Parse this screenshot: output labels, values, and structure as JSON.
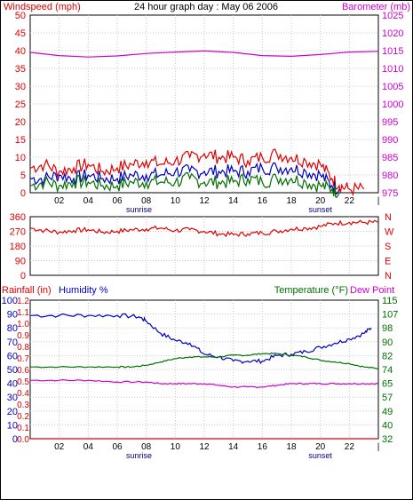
{
  "title": "24 hour graph day : May 06 2006",
  "colors": {
    "wind": "#e00000",
    "wind_avg": "#0000c0",
    "wind_min": "#007000",
    "barometer": "#d000d0",
    "direction": "#e00000",
    "rain": "#e00000",
    "humidity": "#0000c0",
    "temperature": "#007000",
    "dewpoint": "#d000d0",
    "grid": "#c8c8c8",
    "frame": "#000000"
  },
  "x_ticks": [
    "02",
    "04",
    "06",
    "08",
    "10",
    "12",
    "14",
    "16",
    "18",
    "20",
    "22",
    "|"
  ],
  "sunrise_label": "sunrise",
  "sunset_label": "sunset",
  "chart_data": [
    {
      "type": "line",
      "id": "wind-barometer",
      "title": "24 hour graph day : May 06 2006",
      "left_label": "Windspeed (mph)",
      "right_label": "Barometer (mb)",
      "left_ticks": [
        "50",
        "45",
        "40",
        "35",
        "30",
        "25",
        "20",
        "15",
        "10",
        "5",
        "0"
      ],
      "right_ticks": [
        "1025",
        "1020",
        "1015",
        "1010",
        "1005",
        "1000",
        "995",
        "990",
        "985",
        "980",
        "975"
      ],
      "ylim_left": [
        0,
        50
      ],
      "ylim_right": [
        975,
        1025
      ],
      "xlim": [
        0,
        24
      ],
      "series": [
        {
          "key": "wind_gust",
          "axis": "left",
          "color_key": "wind",
          "values": [
            [
              0,
              7
            ],
            [
              1,
              8
            ],
            [
              2,
              6
            ],
            [
              3,
              7
            ],
            [
              4,
              8
            ],
            [
              5,
              6
            ],
            [
              6,
              7
            ],
            [
              7,
              8
            ],
            [
              8,
              9
            ],
            [
              9,
              8
            ],
            [
              10,
              9
            ],
            [
              11,
              10
            ],
            [
              12,
              11
            ],
            [
              13,
              10
            ],
            [
              14,
              10
            ],
            [
              15,
              9
            ],
            [
              16,
              10
            ],
            [
              17,
              11
            ],
            [
              18,
              10
            ],
            [
              19,
              9
            ],
            [
              20,
              8
            ],
            [
              20.8,
              4
            ],
            [
              21.3,
              2
            ],
            [
              22,
              1
            ],
            [
              23,
              1
            ]
          ]
        },
        {
          "key": "wind_avg",
          "axis": "left",
          "color_key": "wind_avg",
          "values": [
            [
              0,
              4
            ],
            [
              1,
              4
            ],
            [
              2,
              5
            ],
            [
              3,
              4
            ],
            [
              4,
              5
            ],
            [
              5,
              4
            ],
            [
              6,
              4
            ],
            [
              7,
              5
            ],
            [
              8,
              5
            ],
            [
              9,
              5
            ],
            [
              10,
              6
            ],
            [
              11,
              6
            ],
            [
              12,
              6
            ],
            [
              13,
              6
            ],
            [
              14,
              6
            ],
            [
              15,
              6
            ],
            [
              16,
              7
            ],
            [
              17,
              7
            ],
            [
              18,
              7
            ],
            [
              19,
              6
            ],
            [
              20,
              5
            ],
            [
              20.8,
              2
            ],
            [
              21.3,
              1
            ]
          ]
        },
        {
          "key": "wind_min",
          "axis": "left",
          "color_key": "wind_min",
          "values": [
            [
              0,
              2
            ],
            [
              1,
              3
            ],
            [
              2,
              2
            ],
            [
              3,
              3
            ],
            [
              4,
              3
            ],
            [
              5,
              2
            ],
            [
              6,
              2
            ],
            [
              7,
              3
            ],
            [
              8,
              3
            ],
            [
              9,
              3
            ],
            [
              10,
              3
            ],
            [
              11,
              4
            ],
            [
              12,
              3
            ],
            [
              13,
              3
            ],
            [
              14,
              3
            ],
            [
              15,
              4
            ],
            [
              16,
              3
            ],
            [
              17,
              4
            ],
            [
              18,
              4
            ],
            [
              19,
              3
            ],
            [
              20,
              2
            ],
            [
              20.8,
              1
            ],
            [
              21.3,
              0
            ]
          ]
        },
        {
          "key": "barometer",
          "axis": "right",
          "color_key": "barometer",
          "values": [
            [
              0,
              1014.5
            ],
            [
              2,
              1013.6
            ],
            [
              4,
              1013.2
            ],
            [
              6,
              1013.5
            ],
            [
              8,
              1014.2
            ],
            [
              10,
              1014.6
            ],
            [
              12,
              1014.9
            ],
            [
              14,
              1014.5
            ],
            [
              16,
              1013.6
            ],
            [
              18,
              1013.4
            ],
            [
              20,
              1013.9
            ],
            [
              22,
              1014.6
            ],
            [
              24,
              1014.8
            ]
          ]
        }
      ]
    },
    {
      "type": "line",
      "id": "wind-direction",
      "left_ticks": [
        "360",
        "270",
        "180",
        "90",
        "0"
      ],
      "right_ticks": [
        "N",
        "W",
        "S",
        "E",
        "N"
      ],
      "ylim_left": [
        0,
        360
      ],
      "xlim": [
        0,
        24
      ],
      "series": [
        {
          "key": "direction",
          "axis": "left",
          "color_key": "direction",
          "values": [
            [
              0,
              290
            ],
            [
              1,
              275
            ],
            [
              2,
              265
            ],
            [
              3,
              275
            ],
            [
              4,
              280
            ],
            [
              5,
              265
            ],
            [
              6,
              270
            ],
            [
              7,
              280
            ],
            [
              8,
              285
            ],
            [
              9,
              290
            ],
            [
              10,
              275
            ],
            [
              11,
              280
            ],
            [
              12,
              270
            ],
            [
              13,
              255
            ],
            [
              14,
              250
            ],
            [
              15,
              255
            ],
            [
              16,
              260
            ],
            [
              17,
              270
            ],
            [
              18,
              285
            ],
            [
              19,
              290
            ],
            [
              20,
              300
            ],
            [
              21,
              320
            ],
            [
              22,
              325
            ],
            [
              23,
              325
            ],
            [
              24,
              325
            ]
          ]
        }
      ]
    },
    {
      "type": "line",
      "id": "temp-humidity-rain",
      "left_label_rain": "Rainfall (in)",
      "left_label_humidity": "Humidity %",
      "right_label_temp": "Temperature (°F)",
      "right_label_dew": "Dew Point",
      "humidity_ticks": [
        "100",
        "90",
        "80",
        "70",
        "60",
        "50",
        "40",
        "30",
        "20",
        "10",
        "0"
      ],
      "rain_ticks": [
        "1.2",
        "1.1",
        "1.0",
        "0.9",
        "0.8",
        "0.7",
        "0.6",
        "0.5",
        "0.4",
        "0.3",
        "0.2",
        "0.1",
        "0.0"
      ],
      "right_ticks": [
        "115",
        "107",
        "98",
        "90",
        "82",
        "74",
        "65",
        "57",
        "49",
        "40",
        "32"
      ],
      "ylim_humidity": [
        0,
        100
      ],
      "ylim_rain": [
        0,
        1.2
      ],
      "ylim_temp": [
        32,
        115
      ],
      "xlim": [
        0,
        24
      ],
      "series": [
        {
          "key": "humidity",
          "axis": "humidity",
          "color_key": "humidity",
          "values": [
            [
              0,
              89
            ],
            [
              2,
              89
            ],
            [
              4,
              89
            ],
            [
              6,
              89
            ],
            [
              7.5,
              88
            ],
            [
              8,
              85
            ],
            [
              9,
              76
            ],
            [
              10,
              71
            ],
            [
              11,
              69
            ],
            [
              12,
              61
            ],
            [
              13,
              59
            ],
            [
              14,
              56
            ],
            [
              15,
              56
            ],
            [
              16,
              56
            ],
            [
              17,
              60
            ],
            [
              18,
              61
            ],
            [
              19,
              63
            ],
            [
              20,
              66
            ],
            [
              21,
              69
            ],
            [
              22,
              72
            ],
            [
              23,
              76
            ],
            [
              23.5,
              80
            ]
          ]
        },
        {
          "key": "temperature",
          "axis": "temp",
          "color_key": "temperature",
          "values": [
            [
              0,
              75
            ],
            [
              2,
              75
            ],
            [
              4,
              75
            ],
            [
              6,
              75
            ],
            [
              7,
              75
            ],
            [
              8,
              76
            ],
            [
              9,
              78
            ],
            [
              10,
              80
            ],
            [
              11,
              81
            ],
            [
              12,
              81
            ],
            [
              13,
              81
            ],
            [
              14,
              82
            ],
            [
              15,
              82
            ],
            [
              16,
              83
            ],
            [
              17,
              83
            ],
            [
              18,
              82
            ],
            [
              19,
              81
            ],
            [
              20,
              79
            ],
            [
              21,
              78
            ],
            [
              22,
              77
            ],
            [
              23,
              75
            ],
            [
              24,
              74
            ]
          ]
        },
        {
          "key": "dewpoint",
          "axis": "temp",
          "color_key": "dewpoint",
          "values": [
            [
              0,
              67
            ],
            [
              2,
              67
            ],
            [
              4,
              67
            ],
            [
              6,
              66
            ],
            [
              8,
              66
            ],
            [
              9,
              65
            ],
            [
              10,
              65
            ],
            [
              11,
              65
            ],
            [
              12,
              65
            ],
            [
              13,
              64
            ],
            [
              14,
              63
            ],
            [
              15,
              63
            ],
            [
              16,
              63
            ],
            [
              17,
              64
            ],
            [
              18,
              65
            ],
            [
              19,
              65
            ],
            [
              20,
              65
            ],
            [
              21,
              65
            ],
            [
              22,
              65
            ],
            [
              23,
              65
            ],
            [
              24,
              65
            ]
          ]
        },
        {
          "key": "rain",
          "axis": "rain",
          "color_key": "rain",
          "values": [
            [
              0,
              0
            ],
            [
              24,
              0
            ]
          ]
        }
      ]
    }
  ]
}
